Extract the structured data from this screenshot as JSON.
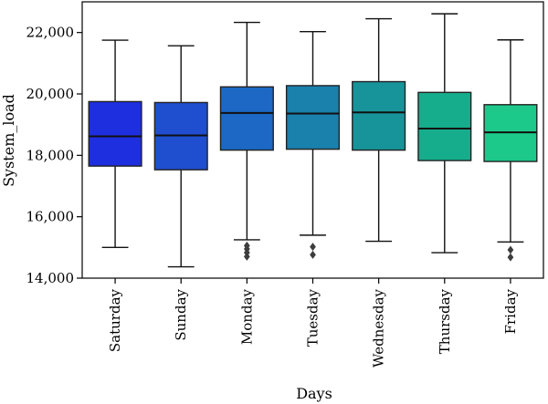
{
  "chart_data": {
    "type": "box",
    "xlabel": "Days",
    "ylabel": "System_load",
    "ylim": [
      14000,
      23000
    ],
    "yticks": [
      14000,
      16000,
      18000,
      20000,
      22000
    ],
    "ytick_labels": [
      "14,000",
      "16,000",
      "18,000",
      "20,000",
      "22,000"
    ],
    "grid": false,
    "categories": [
      "Saturday",
      "Sunday",
      "Monday",
      "Tuesday",
      "Wednesday",
      "Thursday",
      "Friday"
    ],
    "colors": [
      "#1e2fe0",
      "#1f4fcf",
      "#1c68c4",
      "#1a80ac",
      "#17949a",
      "#16ad8c",
      "#1cc98a"
    ],
    "boxes": [
      {
        "whislo": 15000,
        "q1": 17650,
        "med": 18620,
        "q3": 19750,
        "whishi": 21750,
        "fliers": []
      },
      {
        "whislo": 14370,
        "q1": 17530,
        "med": 18650,
        "q3": 19720,
        "whishi": 21570,
        "fliers": []
      },
      {
        "whislo": 15250,
        "q1": 18170,
        "med": 19380,
        "q3": 20230,
        "whishi": 22330,
        "fliers": [
          15060,
          14950,
          14830,
          14700
        ]
      },
      {
        "whislo": 15400,
        "q1": 18200,
        "med": 19360,
        "q3": 20270,
        "whishi": 22030,
        "fliers": [
          15020,
          14760
        ]
      },
      {
        "whislo": 15200,
        "q1": 18170,
        "med": 19400,
        "q3": 20400,
        "whishi": 22450,
        "fliers": []
      },
      {
        "whislo": 14830,
        "q1": 17830,
        "med": 18870,
        "q3": 20050,
        "whishi": 22610,
        "fliers": []
      },
      {
        "whislo": 15180,
        "q1": 17800,
        "med": 18750,
        "q3": 19650,
        "whishi": 21760,
        "fliers": [
          14920,
          14680
        ]
      }
    ]
  }
}
